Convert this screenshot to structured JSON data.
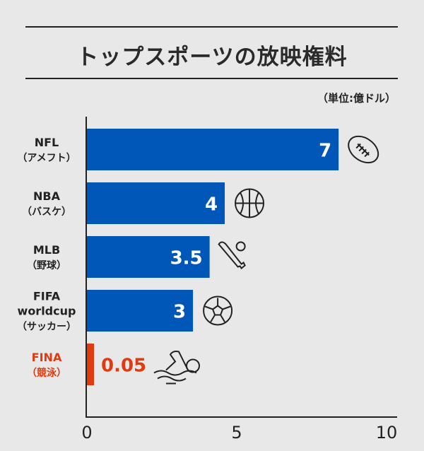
{
  "title": "トップスポーツの放映権料",
  "unit": "（単位:億ドル）",
  "chart_data": {
    "type": "bar",
    "orientation": "horizontal",
    "title": "トップスポーツの放映権料",
    "unit": "（単位:億ドル）",
    "categories": [
      [
        "NFL",
        "（アメフト）"
      ],
      [
        "NBA",
        "（バスケ）"
      ],
      [
        "MLB",
        "（野球）"
      ],
      [
        "FIFA",
        "worldcup",
        "（サッカー）"
      ],
      [
        "FINA",
        "（競泳）"
      ]
    ],
    "values": [
      7,
      4,
      3.5,
      3,
      0.05
    ],
    "value_labels": [
      "7",
      "4",
      "3.5",
      "3",
      "0.05"
    ],
    "icons": [
      "american-football-icon",
      "basketball-icon",
      "baseball-bat-icon",
      "soccer-ball-icon",
      "swimmer-icon"
    ],
    "xlim": [
      0,
      10
    ],
    "xticks": [
      "0",
      "5",
      "10"
    ],
    "grid": false,
    "colors": {
      "bar": "#0057b8",
      "highlight": "#e03a10",
      "text": "#222222"
    },
    "highlight_index": 4
  }
}
